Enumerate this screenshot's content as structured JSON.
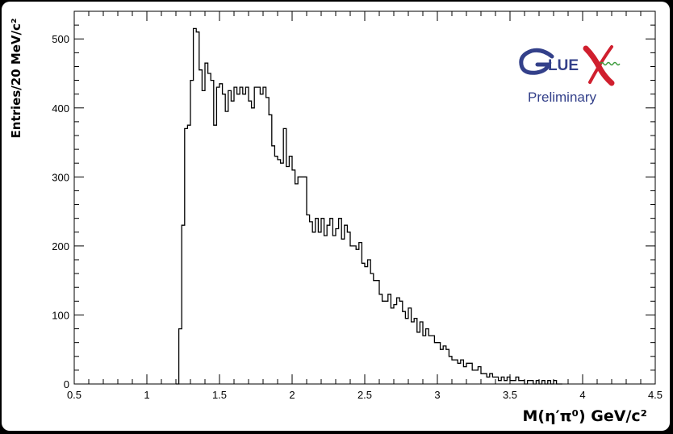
{
  "chart_data": {
    "type": "histogram",
    "ylabel": "Entries/20 MeV/c²",
    "xlabel": "M(η′π⁰) GeV/c²",
    "xlim": [
      0.5,
      4.5
    ],
    "ylim": [
      0,
      540
    ],
    "x_ticks": [
      0.5,
      1,
      1.5,
      2,
      2.5,
      3,
      3.5,
      4,
      4.5
    ],
    "x_tick_labels": [
      "0.5",
      "1",
      "1.5",
      "2",
      "2.5",
      "3",
      "3.5",
      "4",
      "4.5"
    ],
    "y_ticks": [
      0,
      100,
      200,
      300,
      400,
      500
    ],
    "y_tick_labels": [
      "0",
      "100",
      "200",
      "300",
      "400",
      "500"
    ],
    "bin_width": 0.02,
    "x_start": 1.2,
    "bin_values": [
      0,
      80,
      230,
      370,
      375,
      440,
      515,
      510,
      455,
      425,
      465,
      450,
      440,
      375,
      430,
      435,
      420,
      395,
      425,
      410,
      430,
      420,
      430,
      420,
      430,
      410,
      400,
      430,
      430,
      420,
      430,
      415,
      390,
      345,
      330,
      325,
      320,
      370,
      315,
      330,
      310,
      290,
      300,
      300,
      300,
      245,
      235,
      220,
      240,
      220,
      240,
      215,
      230,
      240,
      215,
      225,
      240,
      210,
      230,
      220,
      200,
      200,
      195,
      205,
      175,
      170,
      180,
      160,
      150,
      150,
      130,
      120,
      120,
      130,
      110,
      115,
      125,
      120,
      105,
      95,
      110,
      90,
      95,
      75,
      90,
      70,
      80,
      70,
      70,
      60,
      60,
      50,
      55,
      50,
      40,
      35,
      35,
      30,
      35,
      25,
      30,
      30,
      20,
      20,
      25,
      15,
      15,
      10,
      15,
      10,
      10,
      5,
      10,
      5,
      10,
      5,
      5,
      10,
      5,
      5,
      0,
      5,
      5,
      0,
      5,
      0,
      5,
      0,
      5,
      0,
      5,
      0,
      0
    ]
  },
  "logo": {
    "wordmark": "GLUEX",
    "caption": "Preliminary",
    "colors": {
      "blue": "#33408a",
      "red": "#d01f2e",
      "green": "#3a9a3a"
    }
  },
  "colors": {
    "line": "#000000",
    "background": "#ffffff",
    "frame": "#000000"
  }
}
